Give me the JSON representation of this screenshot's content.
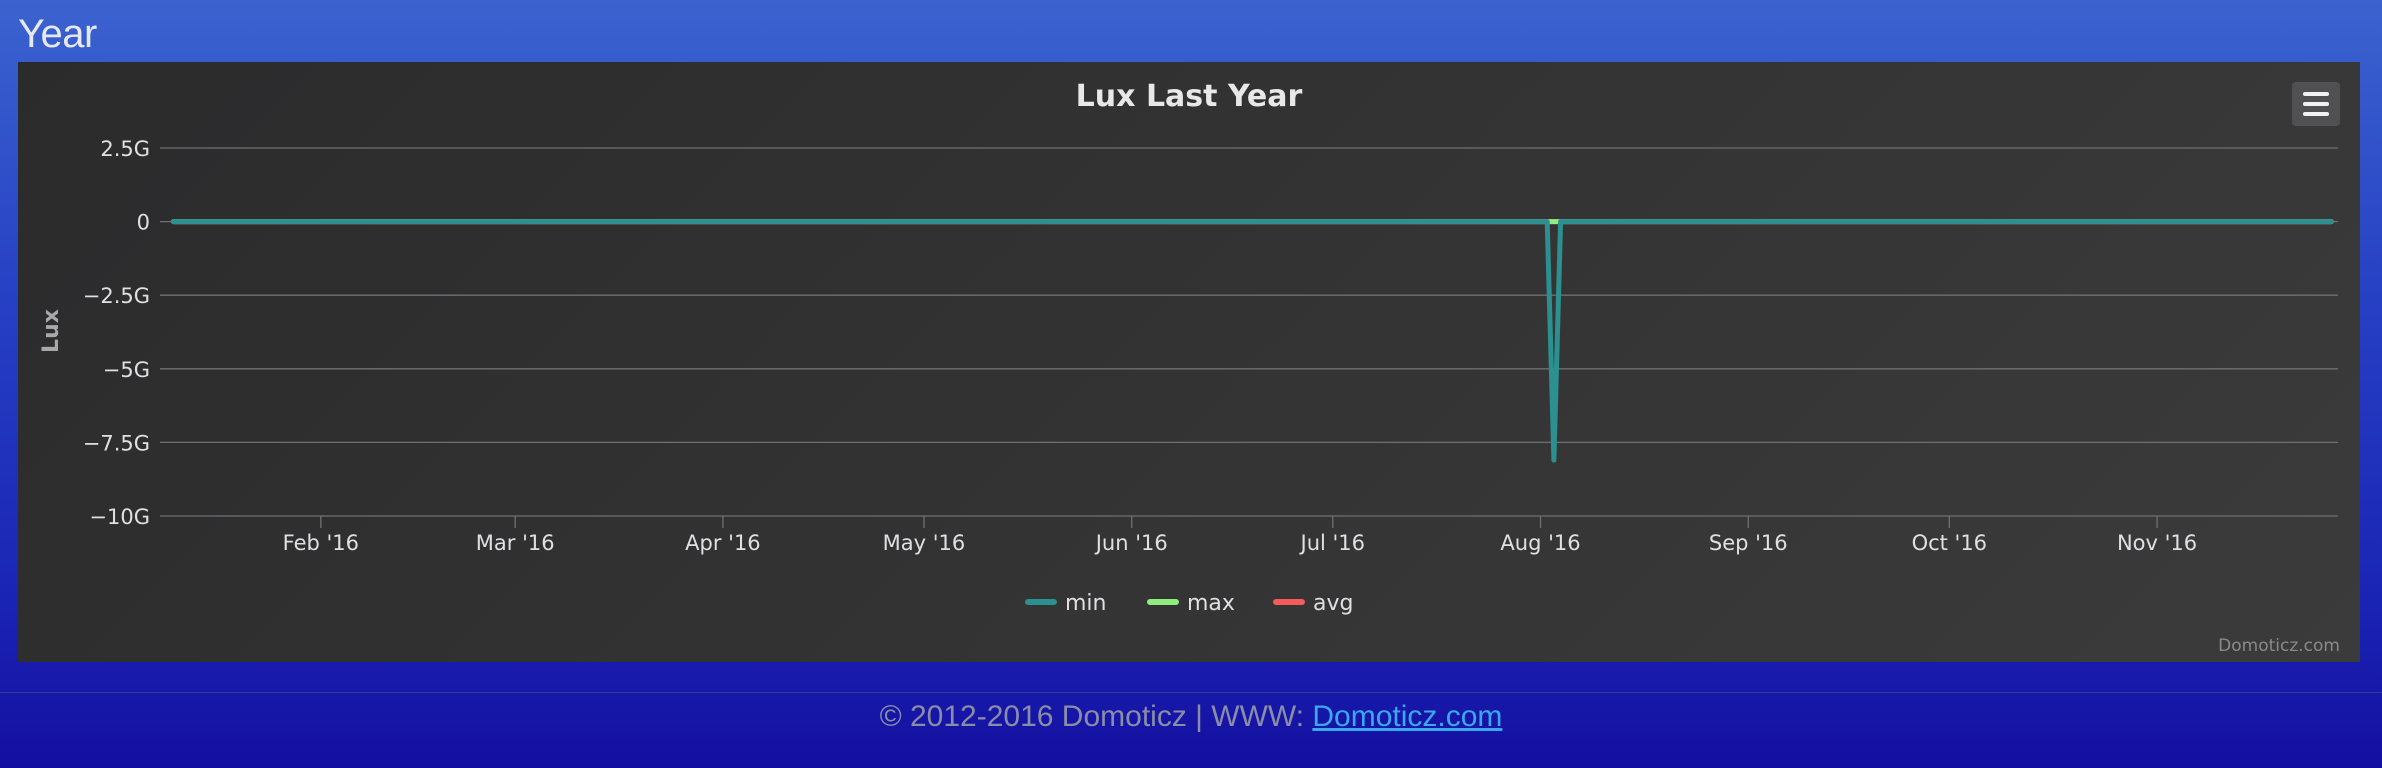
{
  "section": {
    "title": "Year"
  },
  "chart_menu": {
    "icon": "hamburger-menu-icon"
  },
  "credits": "Domoticz.com",
  "footer": {
    "text": "© 2012-2016 Domoticz | WWW: ",
    "link_text": "Domoticz.com"
  },
  "chart_data": {
    "type": "line",
    "title": "Lux Last Year",
    "ylabel": "Lux",
    "xlabel": "",
    "ylim": [
      -10000000000,
      3000000000
    ],
    "y_ticks": [
      2500000000,
      0,
      -2500000000,
      -5000000000,
      -7500000000,
      -10000000000
    ],
    "y_tick_labels": [
      "2.5G",
      "0",
      "−2.5G",
      "−5G",
      "−7.5G",
      "−10G"
    ],
    "x_range": [
      "2016-01-08",
      "2016-11-28"
    ],
    "x_ticks": [
      "2016-02-01",
      "2016-03-01",
      "2016-04-01",
      "2016-05-01",
      "2016-06-01",
      "2016-07-01",
      "2016-08-01",
      "2016-09-01",
      "2016-10-01",
      "2016-11-01"
    ],
    "x_tick_labels": [
      "Feb '16",
      "Mar '16",
      "Apr '16",
      "May '16",
      "Jun '16",
      "Jul '16",
      "Aug '16",
      "Sep '16",
      "Oct '16",
      "Nov '16"
    ],
    "grid": true,
    "legend_position": "bottom-center",
    "series": [
      {
        "name": "min",
        "color": "#2b908f",
        "points": [
          [
            "2016-01-10",
            0
          ],
          [
            "2016-08-01",
            0
          ],
          [
            "2016-08-02",
            0
          ],
          [
            "2016-08-03",
            -8100000000
          ],
          [
            "2016-08-04",
            0
          ],
          [
            "2016-11-27",
            0
          ]
        ]
      },
      {
        "name": "max",
        "color": "#90ee7e",
        "points": [
          [
            "2016-01-10",
            0
          ],
          [
            "2016-11-27",
            0
          ]
        ]
      },
      {
        "name": "avg",
        "color": "#f45b5b",
        "points": [
          [
            "2016-01-10",
            0
          ],
          [
            "2016-11-27",
            0
          ]
        ]
      }
    ]
  }
}
